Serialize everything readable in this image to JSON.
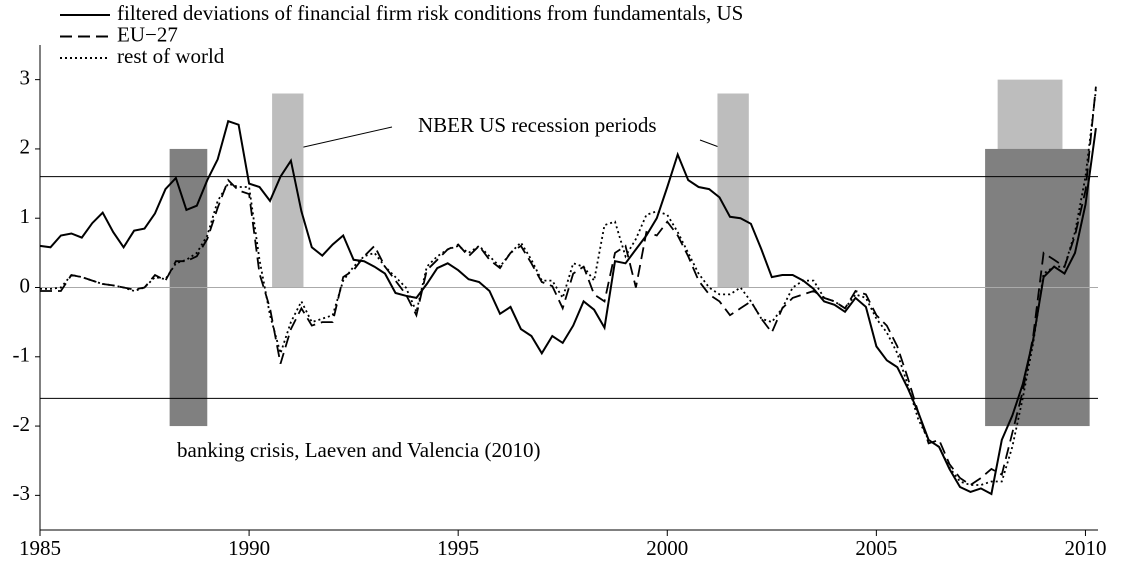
{
  "chart_data": {
    "type": "line",
    "x": [
      1985,
      1985.25,
      1985.5,
      1985.75,
      1986,
      1986.25,
      1986.5,
      1986.75,
      1987,
      1987.25,
      1987.5,
      1987.75,
      1988,
      1988.25,
      1988.5,
      1988.75,
      1989,
      1989.25,
      1989.5,
      1989.75,
      1990,
      1990.25,
      1990.5,
      1990.75,
      1991,
      1991.25,
      1991.5,
      1991.75,
      1992,
      1992.25,
      1992.5,
      1992.75,
      1993,
      1993.25,
      1993.5,
      1993.75,
      1994,
      1994.25,
      1994.5,
      1994.75,
      1995,
      1995.25,
      1995.5,
      1995.75,
      1996,
      1996.25,
      1996.5,
      1996.75,
      1997,
      1997.25,
      1997.5,
      1997.75,
      1998,
      1998.25,
      1998.5,
      1998.75,
      1999,
      1999.25,
      1999.5,
      1999.75,
      2000,
      2000.25,
      2000.5,
      2000.75,
      2001,
      2001.25,
      2001.5,
      2001.75,
      2002,
      2002.25,
      2002.5,
      2002.75,
      2003,
      2003.25,
      2003.5,
      2003.75,
      2004,
      2004.25,
      2004.5,
      2004.75,
      2005,
      2005.25,
      2005.5,
      2005.75,
      2006,
      2006.25,
      2006.5,
      2006.75,
      2007,
      2007.25,
      2007.5,
      2007.75,
      2008,
      2008.25,
      2008.5,
      2008.75,
      2009,
      2009.25,
      2009.5,
      2009.75,
      2010,
      2010.25
    ],
    "series": [
      {
        "name": "filtered deviations of financial firm risk conditions from fundamentals, US",
        "color": "#000000",
        "dash": "solid",
        "values": [
          0.6,
          0.58,
          0.75,
          0.78,
          0.72,
          0.93,
          1.08,
          0.8,
          0.58,
          0.82,
          0.85,
          1.07,
          1.42,
          1.58,
          1.12,
          1.18,
          1.55,
          1.85,
          2.4,
          2.35,
          1.5,
          1.45,
          1.25,
          1.6,
          1.83,
          1.1,
          0.58,
          0.46,
          0.62,
          0.75,
          0.4,
          0.38,
          0.3,
          0.2,
          -0.08,
          -0.12,
          -0.15,
          0.05,
          0.28,
          0.35,
          0.25,
          0.12,
          0.08,
          -0.05,
          -0.38,
          -0.28,
          -0.6,
          -0.7,
          -0.95,
          -0.7,
          -0.8,
          -0.55,
          -0.2,
          -0.32,
          -0.58,
          0.38,
          0.35,
          0.55,
          0.75,
          1.0,
          1.45,
          1.92,
          1.55,
          1.45,
          1.42,
          1.3,
          1.02,
          1.0,
          0.92,
          0.55,
          0.15,
          0.18,
          0.18,
          0.1,
          -0.02,
          -0.2,
          -0.25,
          -0.35,
          -0.15,
          -0.28,
          -0.85,
          -1.05,
          -1.15,
          -1.45,
          -1.8,
          -2.2,
          -2.3,
          -2.62,
          -2.88,
          -2.95,
          -2.9,
          -2.98,
          -2.2,
          -1.85,
          -1.4,
          -0.75,
          0.15,
          0.3,
          0.2,
          0.5,
          1.2,
          2.3
        ]
      },
      {
        "name": "EU−27",
        "color": "#000000",
        "dash": "dashed",
        "values": [
          -0.05,
          -0.05,
          -0.05,
          0.18,
          0.15,
          0.1,
          0.05,
          0.03,
          0.0,
          -0.03,
          0.0,
          0.18,
          0.1,
          0.38,
          0.38,
          0.45,
          0.7,
          1.15,
          1.55,
          1.4,
          1.35,
          0.2,
          -0.3,
          -1.1,
          -0.6,
          -0.3,
          -0.55,
          -0.5,
          -0.5,
          0.15,
          0.25,
          0.45,
          0.6,
          0.3,
          0.1,
          -0.1,
          -0.4,
          0.25,
          0.4,
          0.55,
          0.62,
          0.45,
          0.6,
          0.4,
          0.28,
          0.5,
          0.6,
          0.35,
          0.08,
          0.02,
          -0.3,
          0.2,
          0.3,
          -0.1,
          -0.2,
          0.5,
          0.6,
          0.0,
          0.8,
          0.75,
          0.95,
          0.75,
          0.45,
          0.1,
          -0.1,
          -0.2,
          -0.4,
          -0.3,
          -0.2,
          -0.45,
          -0.65,
          -0.3,
          -0.15,
          -0.1,
          -0.05,
          -0.15,
          -0.2,
          -0.3,
          -0.05,
          -0.1,
          -0.4,
          -0.55,
          -0.85,
          -1.3,
          -1.8,
          -2.25,
          -2.2,
          -2.55,
          -2.75,
          -2.85,
          -2.75,
          -2.62,
          -2.7,
          -2.1,
          -1.5,
          -0.7,
          0.5,
          0.4,
          0.3,
          0.75,
          1.4,
          2.9
        ]
      },
      {
        "name": "rest of world",
        "color": "#000000",
        "dash": "dotted",
        "values": [
          -0.02,
          -0.02,
          0.0,
          0.18,
          0.15,
          0.1,
          0.05,
          0.03,
          0.0,
          -0.05,
          0.0,
          0.15,
          0.12,
          0.35,
          0.4,
          0.5,
          0.75,
          1.25,
          1.5,
          1.45,
          1.45,
          0.4,
          -0.4,
          -0.95,
          -0.5,
          -0.2,
          -0.5,
          -0.45,
          -0.4,
          0.1,
          0.3,
          0.45,
          0.5,
          0.3,
          0.15,
          0.0,
          -0.35,
          0.3,
          0.45,
          0.55,
          0.6,
          0.5,
          0.6,
          0.45,
          0.3,
          0.5,
          0.65,
          0.4,
          0.1,
          0.1,
          -0.15,
          0.35,
          0.3,
          0.1,
          0.9,
          0.95,
          0.45,
          0.7,
          1.05,
          1.1,
          1.05,
          0.8,
          0.5,
          0.2,
          0.0,
          -0.1,
          -0.1,
          0.0,
          -0.2,
          -0.45,
          -0.5,
          -0.3,
          0.0,
          0.1,
          0.1,
          -0.15,
          -0.2,
          -0.3,
          -0.1,
          -0.15,
          -0.45,
          -0.65,
          -0.95,
          -1.4,
          -1.9,
          -2.2,
          -2.3,
          -2.6,
          -2.8,
          -2.85,
          -2.85,
          -2.8,
          -2.8,
          -2.3,
          -1.6,
          -0.8,
          0.2,
          0.3,
          0.3,
          0.8,
          1.6,
          2.85
        ]
      }
    ],
    "xlim": [
      1985,
      2010.3
    ],
    "ylim": [
      -3.5,
      3.5
    ],
    "xticks": [
      1985,
      1990,
      1995,
      2000,
      2005,
      2010
    ],
    "yticks": [
      -3,
      -2,
      -1,
      0,
      1,
      2,
      3
    ],
    "zero_line": true,
    "thresholds": [
      1.6,
      -1.6
    ],
    "nber_recessions": [
      {
        "x": [
          1990.55,
          1991.3
        ],
        "y": [
          0,
          2.8
        ]
      },
      {
        "x": [
          2001.2,
          2001.95
        ],
        "y": [
          0,
          2.8
        ]
      },
      {
        "x": [
          2007.9,
          2009.45
        ],
        "y": [
          0,
          3
        ]
      }
    ],
    "banking_crises": [
      {
        "x": [
          1988.1,
          1989.0
        ],
        "y": [
          -2,
          2
        ]
      },
      {
        "x": [
          2007.6,
          2010.1
        ],
        "y": [
          -2,
          2
        ]
      }
    ],
    "annotations": [
      "NBER US recession periods",
      "banking crisis, Laeven and Valencia (2010)"
    ]
  }
}
